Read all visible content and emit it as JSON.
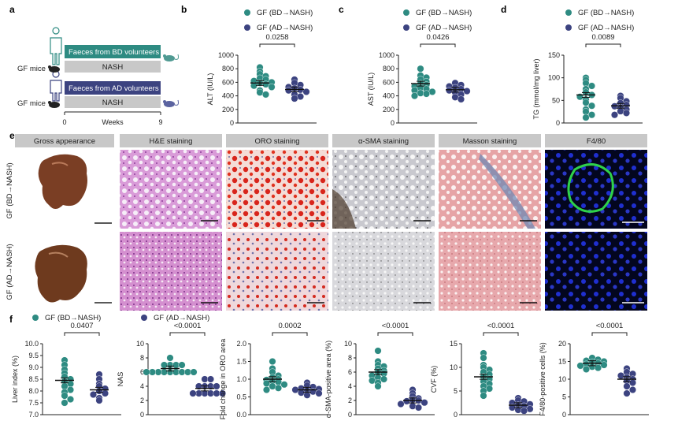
{
  "colors": {
    "bd": "#2e8b82",
    "ad": "#3c4380",
    "grey": "#c8c8c8",
    "he": "#d69bd6",
    "oro": "#f2d6cf",
    "sma": "#dfdfe2",
    "masson": "#e8b0b0",
    "f480": "#050a2a"
  },
  "panel_a": {
    "label": "a",
    "mice_label_1": "GF mice",
    "mice_label_2": "GF mice",
    "bd_bar": "Faeces from BD volunteers",
    "ad_bar": "Faeces from AD volunteers",
    "nash_1": "NASH",
    "nash_2": "NASH",
    "axis_start": "0",
    "axis_mid": "Weeks",
    "axis_end": "9",
    "icons": [
      "person-icon",
      "mouse-icon"
    ]
  },
  "legend": {
    "bd": "GF (BD→NASH)",
    "ad": "GF (AD→NASH)"
  },
  "panel_e": {
    "label": "e",
    "headers": [
      "Gross appearance",
      "H&E staining",
      "ORO staining",
      "α-SMA staining",
      "Masson staining",
      "F4/80"
    ],
    "row_labels": [
      "GF (BD→NASH)",
      "GF (AD→NASH)"
    ]
  },
  "chart_data": [
    {
      "panel": "b",
      "type": "scatter",
      "ylabel": "ALT (IU/L)",
      "ylim": [
        0,
        1000
      ],
      "yticks": [
        0,
        200,
        400,
        600,
        800,
        1000
      ],
      "pvalue": "0.0258",
      "series": [
        {
          "name": "GF (BD→NASH)",
          "mean": 590,
          "values": [
            820,
            760,
            720,
            690,
            660,
            640,
            620,
            600,
            590,
            570,
            550,
            530,
            480,
            450,
            420
          ]
        },
        {
          "name": "GF (AD→NASH)",
          "mean": 495,
          "values": [
            640,
            590,
            560,
            530,
            510,
            490,
            480,
            460,
            420,
            390,
            360
          ]
        }
      ]
    },
    {
      "panel": "c",
      "type": "scatter",
      "ylabel": "AST (IU/L)",
      "ylim": [
        0,
        1000
      ],
      "yticks": [
        0,
        200,
        400,
        600,
        800,
        1000
      ],
      "pvalue": "0.0426",
      "series": [
        {
          "name": "GF (BD→NASH)",
          "mean": 580,
          "values": [
            800,
            700,
            670,
            640,
            610,
            580,
            560,
            540,
            520,
            500,
            480,
            460,
            440,
            430,
            400
          ]
        },
        {
          "name": "GF (AD→NASH)",
          "mean": 490,
          "values": [
            590,
            560,
            540,
            520,
            500,
            480,
            470,
            450,
            420,
            380,
            350
          ]
        }
      ]
    },
    {
      "panel": "d",
      "type": "scatter",
      "ylabel": "TG (mmol/mg liver)",
      "ylim": [
        0,
        150
      ],
      "yticks": [
        0,
        50,
        100,
        150
      ],
      "pvalue": "0.0089",
      "series": [
        {
          "name": "GF (BD→NASH)",
          "mean": 62,
          "values": [
            100,
            95,
            88,
            82,
            75,
            68,
            62,
            58,
            52,
            45,
            38,
            30,
            25,
            18,
            12
          ]
        },
        {
          "name": "GF (AD→NASH)",
          "mean": 38,
          "values": [
            60,
            55,
            48,
            44,
            40,
            37,
            34,
            30,
            26,
            22,
            18
          ]
        }
      ]
    },
    {
      "panel": "f1",
      "type": "scatter",
      "ylabel": "Liver index (%)",
      "ylim": [
        7.0,
        10.0
      ],
      "yticks": [
        7.0,
        7.5,
        8.0,
        8.5,
        9.0,
        9.5,
        10.0
      ],
      "pvalue": "0.0407",
      "series": [
        {
          "name": "GF (BD→NASH)",
          "mean": 8.45,
          "values": [
            9.3,
            9.1,
            8.9,
            8.75,
            8.6,
            8.5,
            8.4,
            8.3,
            8.2,
            8.05,
            7.95,
            7.8,
            7.65,
            7.5
          ]
        },
        {
          "name": "GF (AD→NASH)",
          "mean": 8.05,
          "values": [
            8.7,
            8.5,
            8.3,
            8.2,
            8.1,
            8.0,
            7.9,
            7.85,
            7.7,
            7.6
          ]
        }
      ]
    },
    {
      "panel": "f2",
      "type": "scatter",
      "ylabel": "NAS",
      "ylim": [
        0,
        10
      ],
      "yticks": [
        0,
        2,
        4,
        6,
        8,
        10
      ],
      "pvalue": "<0.0001",
      "series": [
        {
          "name": "GF (BD→NASH)",
          "mean": 6.5,
          "values": [
            8,
            7,
            7,
            7,
            7,
            6,
            6,
            6,
            6,
            6,
            6,
            6,
            6,
            6
          ]
        },
        {
          "name": "GF (AD→NASH)",
          "mean": 3.7,
          "values": [
            5,
            5,
            4,
            4,
            4,
            4,
            3,
            3,
            3,
            3,
            3,
            3
          ]
        }
      ]
    },
    {
      "panel": "f3",
      "type": "scatter",
      "ylabel": "Fold change in ORO area",
      "ylim": [
        0,
        2.0
      ],
      "yticks": [
        0,
        0.5,
        1.0,
        1.5,
        2.0
      ],
      "pvalue": "0.0002",
      "series": [
        {
          "name": "GF (BD→NASH)",
          "mean": 1.0,
          "values": [
            1.5,
            1.3,
            1.2,
            1.1,
            1.05,
            1.0,
            0.98,
            0.95,
            0.92,
            0.88,
            0.85,
            0.8,
            0.75,
            0.7
          ]
        },
        {
          "name": "GF (AD→NASH)",
          "mean": 0.7,
          "values": [
            0.9,
            0.82,
            0.78,
            0.74,
            0.72,
            0.7,
            0.68,
            0.65,
            0.62,
            0.6,
            0.55
          ]
        }
      ]
    },
    {
      "panel": "f4",
      "type": "scatter",
      "ylabel": "α-SMA-positive area (%)",
      "ylim": [
        0,
        10
      ],
      "yticks": [
        0,
        2,
        4,
        6,
        8,
        10
      ],
      "pvalue": "<0.0001",
      "series": [
        {
          "name": "GF (BD→NASH)",
          "mean": 6.0,
          "values": [
            9.0,
            7.5,
            7.0,
            6.8,
            6.5,
            6.2,
            6.0,
            5.8,
            5.5,
            5.2,
            5.0,
            4.8,
            4.5,
            4.0
          ]
        },
        {
          "name": "GF (AD→NASH)",
          "mean": 2.0,
          "values": [
            3.5,
            3.0,
            2.6,
            2.3,
            2.1,
            2.0,
            1.9,
            1.7,
            1.5,
            1.2,
            1.0
          ]
        }
      ]
    },
    {
      "panel": "f5",
      "type": "scatter",
      "ylabel": "CVF (%)",
      "ylim": [
        0,
        15
      ],
      "yticks": [
        0,
        5,
        10,
        15
      ],
      "pvalue": "<0.0001",
      "series": [
        {
          "name": "GF (BD→NASH)",
          "mean": 8.0,
          "values": [
            13.0,
            12.0,
            10.5,
            10.0,
            9.5,
            9.0,
            8.5,
            8.0,
            7.5,
            7.0,
            6.5,
            6.0,
            5.5,
            5.0,
            4.0
          ]
        },
        {
          "name": "GF (AD→NASH)",
          "mean": 2.0,
          "values": [
            3.5,
            3.0,
            2.8,
            2.5,
            2.2,
            2.0,
            1.8,
            1.5,
            1.2,
            1.0,
            0.8
          ]
        }
      ]
    },
    {
      "panel": "f6",
      "type": "scatter",
      "ylabel": "F4/80-positive cells (%)",
      "ylim": [
        0,
        20
      ],
      "yticks": [
        0,
        5,
        10,
        15,
        20
      ],
      "pvalue": "<0.0001",
      "series": [
        {
          "name": "GF (BD→NASH)",
          "mean": 14.5,
          "values": [
            16.0,
            15.5,
            15.2,
            15.0,
            14.8,
            14.5,
            14.2,
            14.0,
            13.8,
            13.5,
            13.2,
            12.8
          ]
        },
        {
          "name": "GF (AD→NASH)",
          "mean": 10.0,
          "values": [
            13.0,
            12.0,
            11.5,
            11.0,
            10.5,
            10.0,
            9.5,
            9.0,
            8.0,
            7.0,
            6.0
          ]
        }
      ]
    }
  ],
  "panel_labels": {
    "b": "b",
    "c": "c",
    "d": "d",
    "f": "f"
  }
}
